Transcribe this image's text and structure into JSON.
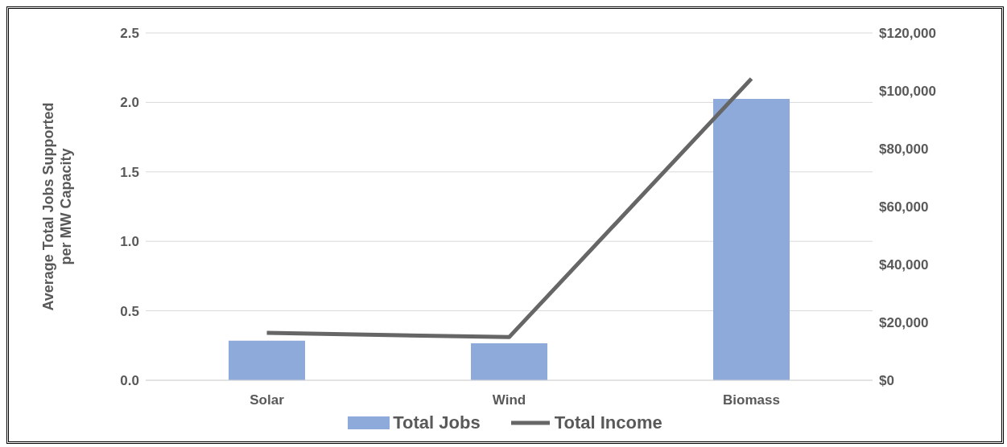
{
  "chart_data": {
    "type": "bar",
    "categories": [
      "Solar",
      "Wind",
      "Biomass"
    ],
    "ylabel": "Average Total Jobs Supported per MW Capacity",
    "series": [
      {
        "name": "Total Jobs",
        "color": "#8eaadb",
        "values": [
          0.285,
          0.266,
          2.025
        ]
      },
      {
        "name": "Total Income",
        "type": "line",
        "axis": "y2",
        "color": "#666666",
        "values": [
          16400,
          14900,
          104200
        ]
      }
    ],
    "ylim": [
      0,
      2.5
    ],
    "yticks": [
      {
        "value": 0,
        "label": "0.0"
      },
      {
        "value": 0.5,
        "label": "0.5"
      },
      {
        "value": 1,
        "label": "1.0"
      },
      {
        "value": 1.5,
        "label": "1.5"
      },
      {
        "value": 2,
        "label": "2.0"
      },
      {
        "value": 2.5,
        "label": "2.5"
      }
    ],
    "y2lim": [
      0,
      120000
    ],
    "y2ticks": [
      {
        "value": 0,
        "label": "$0"
      },
      {
        "value": 20000,
        "label": "$20,000"
      },
      {
        "value": 40000,
        "label": "$40,000"
      },
      {
        "value": 60000,
        "label": "$60,000"
      },
      {
        "value": 80000,
        "label": "$80,000"
      },
      {
        "value": 100000,
        "label": "$100,000"
      },
      {
        "value": 120000,
        "label": "$120,000"
      }
    ],
    "grid": "y",
    "legend": "bottom",
    "marker": "none"
  }
}
